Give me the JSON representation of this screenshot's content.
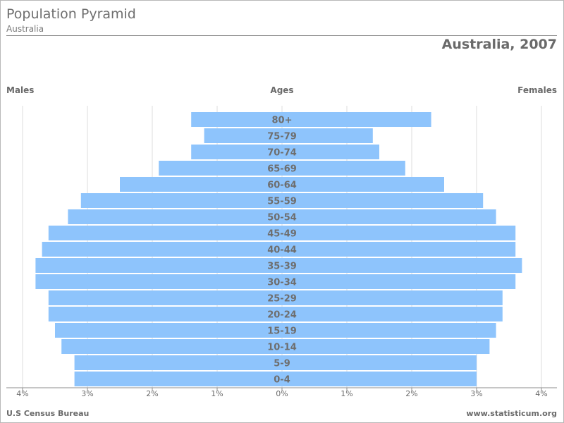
{
  "header": {
    "title": "Population Pyramid",
    "subtitle": "Australia",
    "country_year": "Australia, 2007",
    "males_label": "Males",
    "ages_label": "Ages",
    "females_label": "Females"
  },
  "footer": {
    "source": "U.S Census Bureau",
    "site": "www.statisticum.org"
  },
  "colors": {
    "bar": "#8ec4fc",
    "grid": "#dddddd",
    "axis": "#8c8c8c",
    "text": "#6b6b6b"
  },
  "chart_data": {
    "type": "bar",
    "orientation": "horizontal-pyramid",
    "categories": [
      "80+",
      "75-79",
      "70-74",
      "65-69",
      "60-64",
      "55-59",
      "50-54",
      "45-49",
      "40-44",
      "35-39",
      "30-34",
      "25-29",
      "20-24",
      "15-19",
      "10-14",
      "5-9",
      "0-4"
    ],
    "series": [
      {
        "name": "Males",
        "side": "left",
        "values": [
          1.4,
          1.2,
          1.4,
          1.9,
          2.5,
          3.1,
          3.3,
          3.6,
          3.7,
          3.8,
          3.8,
          3.6,
          3.6,
          3.5,
          3.4,
          3.2,
          3.2
        ]
      },
      {
        "name": "Females",
        "side": "right",
        "values": [
          2.3,
          1.4,
          1.5,
          1.9,
          2.5,
          3.1,
          3.3,
          3.6,
          3.6,
          3.7,
          3.6,
          3.4,
          3.4,
          3.3,
          3.2,
          3.0,
          3.0
        ]
      }
    ],
    "xlim": [
      -4,
      4
    ],
    "xticks": [
      "4%",
      "3%",
      "2%",
      "1%",
      "0%",
      "1%",
      "2%",
      "3%",
      "4%"
    ],
    "grid": true
  }
}
